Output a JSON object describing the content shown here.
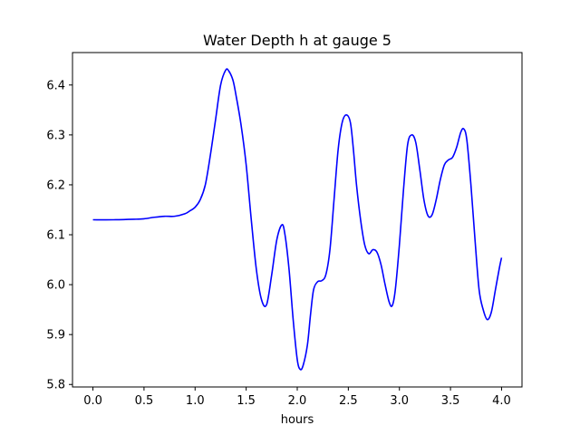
{
  "chart_data": {
    "type": "line",
    "title": "Water Depth h at gauge 5",
    "xlabel": "hours",
    "ylabel": "",
    "xlim": [
      -0.2,
      4.2
    ],
    "ylim": [
      5.795,
      6.465
    ],
    "x_ticks": [
      0.0,
      0.5,
      1.0,
      1.5,
      2.0,
      2.5,
      3.0,
      3.5,
      4.0
    ],
    "x_tick_labels": [
      "0.0",
      "0.5",
      "1.0",
      "1.5",
      "2.0",
      "2.5",
      "3.0",
      "3.5",
      "4.0"
    ],
    "y_ticks": [
      5.8,
      5.9,
      6.0,
      6.1,
      6.2,
      6.3,
      6.4
    ],
    "y_tick_labels": [
      "5.8",
      "5.9",
      "6.0",
      "6.1",
      "6.2",
      "6.3",
      "6.4"
    ],
    "grid": false,
    "series": [
      {
        "color": "#0000ff",
        "x": [
          0.0,
          0.2,
          0.4,
          0.5,
          0.6,
          0.7,
          0.8,
          0.9,
          0.95,
          1.0,
          1.05,
          1.1,
          1.15,
          1.2,
          1.25,
          1.3,
          1.33,
          1.37,
          1.4,
          1.45,
          1.5,
          1.55,
          1.6,
          1.65,
          1.7,
          1.75,
          1.8,
          1.85,
          1.88,
          1.92,
          1.96,
          2.0,
          2.03,
          2.06,
          2.1,
          2.13,
          2.16,
          2.2,
          2.24,
          2.28,
          2.32,
          2.36,
          2.4,
          2.44,
          2.48,
          2.52,
          2.55,
          2.58,
          2.62,
          2.66,
          2.7,
          2.74,
          2.78,
          2.82,
          2.86,
          2.9,
          2.93,
          2.96,
          3.0,
          3.04,
          3.08,
          3.12,
          3.16,
          3.2,
          3.24,
          3.28,
          3.32,
          3.36,
          3.4,
          3.44,
          3.48,
          3.52,
          3.56,
          3.6,
          3.63,
          3.66,
          3.7,
          3.74,
          3.78,
          3.82,
          3.86,
          3.9,
          3.94,
          3.98,
          4.0
        ],
        "y": [
          6.13,
          6.13,
          6.131,
          6.132,
          6.135,
          6.137,
          6.137,
          6.142,
          6.148,
          6.155,
          6.17,
          6.2,
          6.26,
          6.33,
          6.4,
          6.43,
          6.428,
          6.41,
          6.38,
          6.32,
          6.24,
          6.13,
          6.03,
          5.97,
          5.96,
          6.02,
          6.09,
          6.12,
          6.1,
          6.03,
          5.93,
          5.85,
          5.83,
          5.84,
          5.88,
          5.94,
          5.99,
          6.006,
          6.008,
          6.02,
          6.07,
          6.17,
          6.27,
          6.325,
          6.34,
          6.325,
          6.27,
          6.2,
          6.13,
          6.08,
          6.062,
          6.07,
          6.065,
          6.04,
          6.0,
          5.965,
          5.958,
          5.99,
          6.08,
          6.19,
          6.28,
          6.3,
          6.285,
          6.23,
          6.17,
          6.138,
          6.14,
          6.17,
          6.21,
          6.24,
          6.25,
          6.255,
          6.275,
          6.305,
          6.312,
          6.29,
          6.2,
          6.09,
          5.99,
          5.95,
          5.93,
          5.945,
          5.99,
          6.035,
          6.054
        ]
      }
    ]
  }
}
